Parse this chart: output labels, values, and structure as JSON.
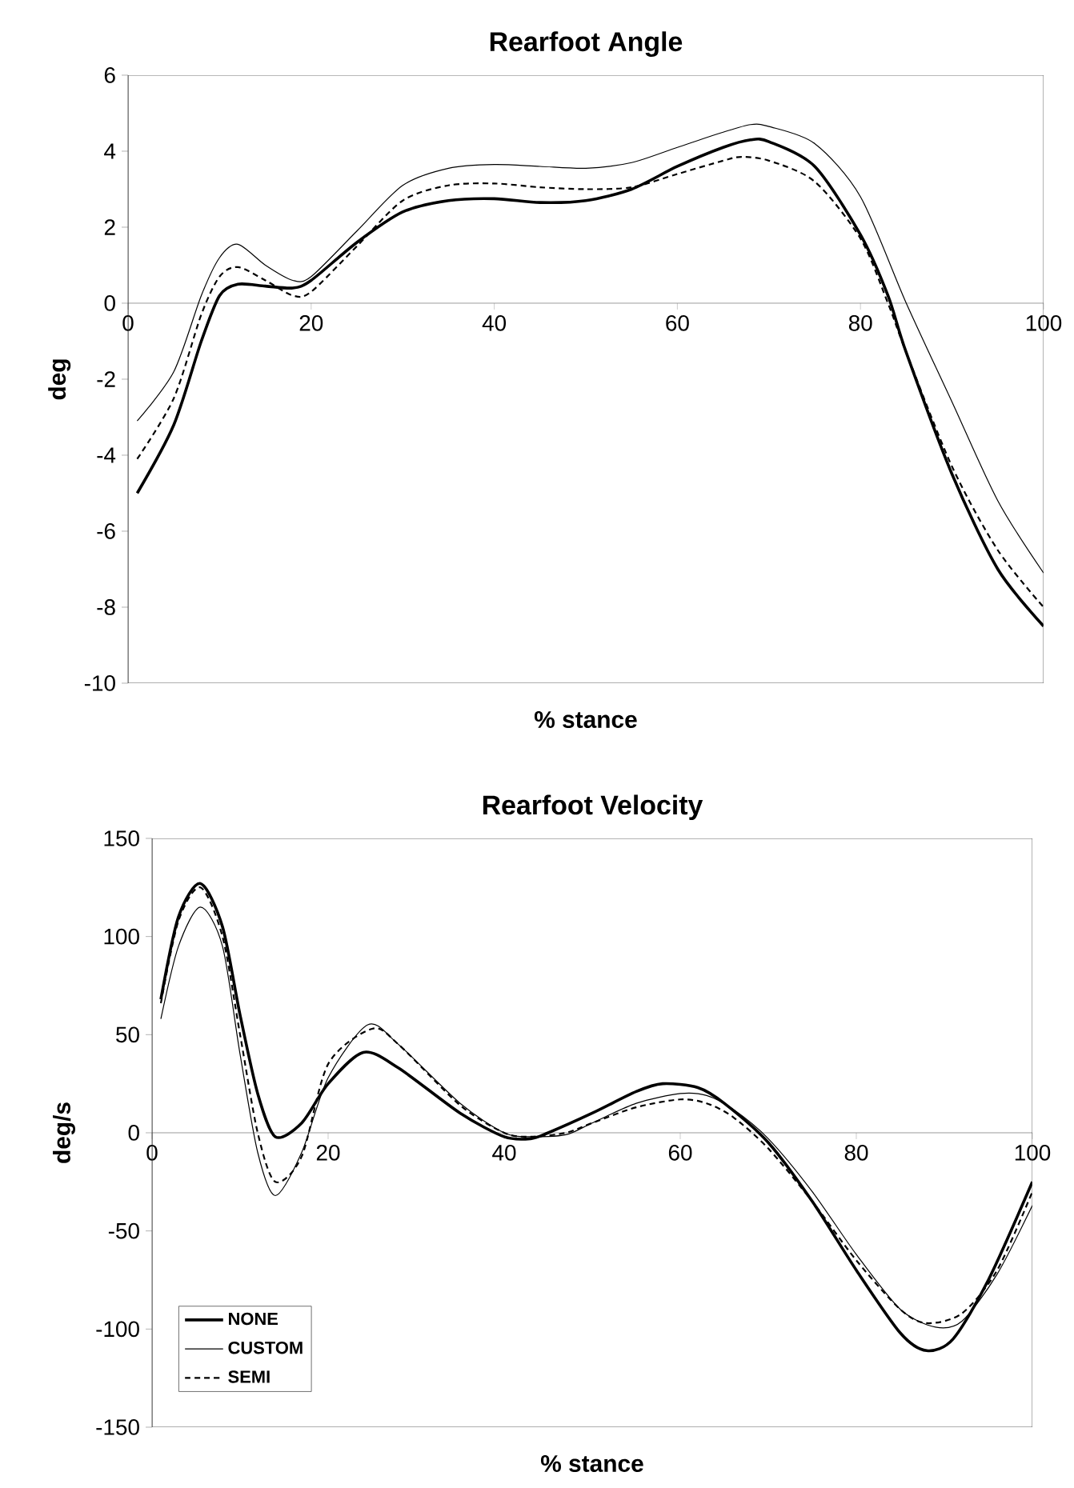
{
  "chart_data": [
    {
      "type": "line",
      "title": "Rearfoot Angle",
      "xlabel": "% stance",
      "ylabel": "deg",
      "xlim": [
        0,
        100
      ],
      "ylim": [
        -10,
        6
      ],
      "xticks": [
        0,
        20,
        40,
        60,
        80,
        100
      ],
      "yticks": [
        -10,
        -8,
        -6,
        -4,
        -2,
        0,
        2,
        4,
        6
      ],
      "legend": false,
      "series": [
        {
          "color": "#000000",
          "line_style": "solid",
          "x": [
            1,
            5,
            8,
            10,
            12,
            15,
            18,
            20,
            25,
            30,
            35,
            40,
            45,
            50,
            55,
            60,
            65,
            68,
            70,
            75,
            80,
            83,
            85,
            90,
            95,
            100
          ],
          "values": [
            -5.0,
            -3.2,
            -1.0,
            0.2,
            0.5,
            0.45,
            0.4,
            0.6,
            1.6,
            2.4,
            2.7,
            2.75,
            2.65,
            2.7,
            3.0,
            3.6,
            4.1,
            4.3,
            4.25,
            3.6,
            1.8,
            0.2,
            -1.3,
            -4.5,
            -7.0,
            -8.5
          ]
        },
        {
          "color": "#000000",
          "line_style": "solid",
          "x": [
            1,
            5,
            8,
            10,
            12,
            15,
            18,
            20,
            25,
            30,
            35,
            40,
            45,
            50,
            55,
            60,
            65,
            68,
            70,
            75,
            80,
            85,
            90,
            95,
            100
          ],
          "values": [
            -3.1,
            -1.8,
            0.2,
            1.2,
            1.55,
            1.0,
            0.6,
            0.7,
            1.9,
            3.1,
            3.55,
            3.65,
            3.6,
            3.55,
            3.7,
            4.1,
            4.5,
            4.7,
            4.65,
            4.2,
            2.8,
            0.0,
            -2.6,
            -5.2,
            -7.1
          ]
        },
        {
          "color": "#000000",
          "line_style": "dashed",
          "x": [
            1,
            5,
            8,
            10,
            12,
            15,
            18,
            20,
            25,
            30,
            35,
            40,
            45,
            50,
            55,
            60,
            65,
            67,
            70,
            75,
            80,
            83,
            85,
            90,
            95,
            100
          ],
          "values": [
            -4.1,
            -2.5,
            -0.3,
            0.7,
            0.95,
            0.6,
            0.2,
            0.3,
            1.5,
            2.7,
            3.1,
            3.15,
            3.05,
            3.0,
            3.05,
            3.4,
            3.75,
            3.85,
            3.75,
            3.2,
            1.7,
            0.0,
            -1.3,
            -4.3,
            -6.5,
            -8.0
          ]
        }
      ]
    },
    {
      "type": "line",
      "title": "Rearfoot Velocity",
      "xlabel": "% stance",
      "ylabel": "deg/s",
      "xlim": [
        0,
        100
      ],
      "ylim": [
        -150,
        150
      ],
      "xticks": [
        0,
        20,
        40,
        60,
        80,
        100
      ],
      "yticks": [
        -150,
        -100,
        -50,
        0,
        50,
        100,
        150
      ],
      "legend": "bottom left",
      "series": [
        {
          "name": "NONE",
          "color": "#000000",
          "line_style": "solid",
          "x": [
            1,
            3,
            5.5,
            8,
            10,
            12,
            14,
            17,
            20,
            24,
            28,
            35,
            40,
            43,
            45,
            50,
            55,
            58,
            62,
            65,
            70,
            75,
            80,
            85,
            88,
            91,
            95,
            100
          ],
          "values": [
            68,
            110,
            127,
            105,
            60,
            20,
            -2,
            5,
            25,
            41,
            33,
            10,
            -2,
            -3,
            0,
            10,
            21,
            25,
            23,
            15,
            -5,
            -35,
            -70,
            -102,
            -111,
            -105,
            -75,
            -25
          ]
        },
        {
          "name": "CUSTOM",
          "color": "#000000",
          "line_style": "solid",
          "x": [
            1,
            3,
            5.5,
            8,
            10,
            12,
            14,
            17,
            20,
            24.5,
            28,
            35,
            40,
            43,
            47,
            50,
            55,
            60,
            63,
            66,
            70,
            75,
            80,
            85,
            89,
            92,
            96,
            100
          ],
          "values": [
            58,
            95,
            115,
            95,
            40,
            -10,
            -32,
            -10,
            28,
            55,
            45,
            15,
            0,
            -2,
            -1,
            5,
            15,
            20,
            19,
            12,
            -3,
            -30,
            -62,
            -90,
            -99,
            -96,
            -72,
            -37
          ]
        },
        {
          "name": "SEMI",
          "color": "#000000",
          "line_style": "dashed",
          "x": [
            1,
            3,
            5.5,
            8,
            10,
            12,
            14,
            17,
            20,
            25,
            28,
            35,
            40,
            43,
            47,
            50,
            55,
            60,
            63,
            66,
            70,
            75,
            80,
            85,
            88,
            92,
            96,
            100
          ],
          "values": [
            66,
            108,
            125,
            100,
            50,
            0,
            -25,
            -12,
            35,
            53,
            45,
            14,
            0,
            -2,
            0,
            5,
            13,
            17,
            15,
            8,
            -8,
            -35,
            -65,
            -90,
            -97,
            -92,
            -70,
            -30
          ]
        }
      ]
    }
  ]
}
